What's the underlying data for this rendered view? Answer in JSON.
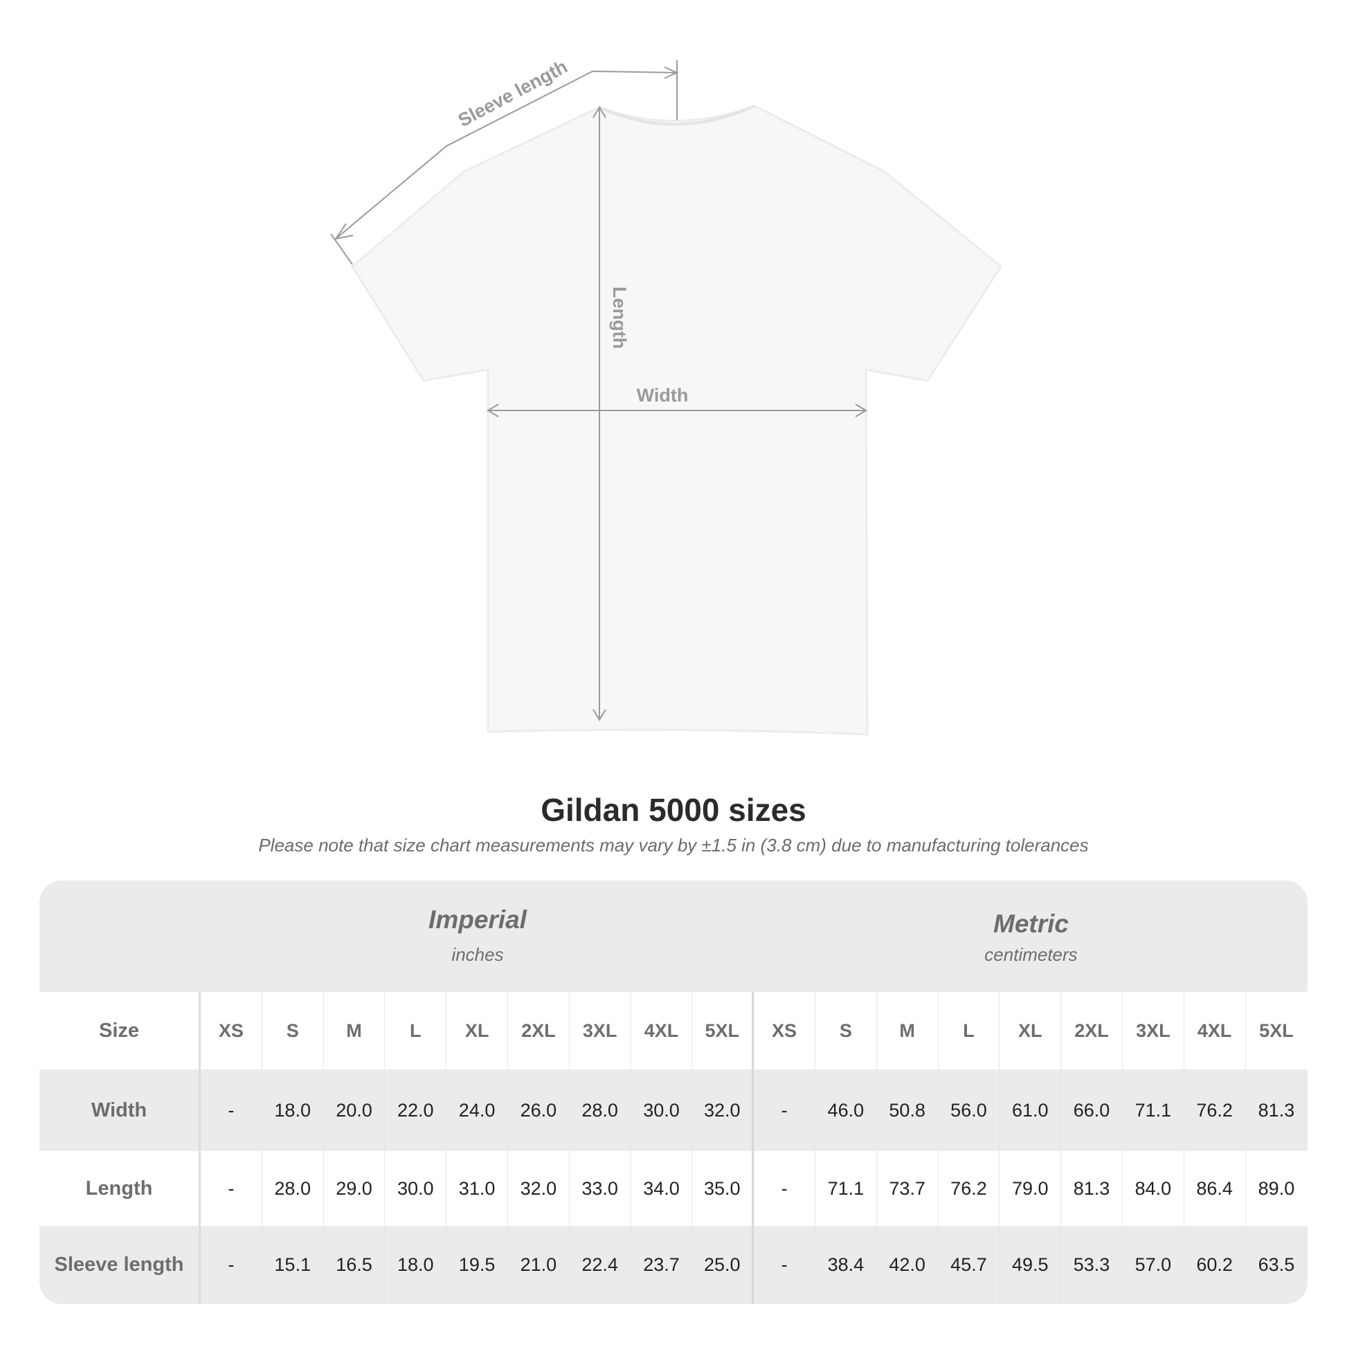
{
  "diagram": {
    "sleeve_label": "Sleeve length",
    "length_label": "Length",
    "width_label": "Width"
  },
  "title": "Gildan 5000 sizes",
  "note": "Please note that size chart measurements may vary by ±1.5 in (3.8 cm) due to manufacturing tolerances",
  "table": {
    "imperial": {
      "name": "Imperial",
      "unit": "inches"
    },
    "metric": {
      "name": "Metric",
      "unit": "centimeters"
    },
    "size_label": "Size",
    "sizes": [
      "XS",
      "S",
      "M",
      "L",
      "XL",
      "2XL",
      "3XL",
      "4XL",
      "5XL"
    ],
    "rows": [
      {
        "label": "Width",
        "imperial": [
          "-",
          "18.0",
          "20.0",
          "22.0",
          "24.0",
          "26.0",
          "28.0",
          "30.0",
          "32.0"
        ],
        "metric": [
          "-",
          "46.0",
          "50.8",
          "56.0",
          "61.0",
          "66.0",
          "71.1",
          "76.2",
          "81.3"
        ]
      },
      {
        "label": "Length",
        "imperial": [
          "-",
          "28.0",
          "29.0",
          "30.0",
          "31.0",
          "32.0",
          "33.0",
          "34.0",
          "35.0"
        ],
        "metric": [
          "-",
          "71.1",
          "73.7",
          "76.2",
          "79.0",
          "81.3",
          "84.0",
          "86.4",
          "89.0"
        ]
      },
      {
        "label": "Sleeve length",
        "imperial": [
          "-",
          "15.1",
          "16.5",
          "18.0",
          "19.5",
          "21.0",
          "22.4",
          "23.7",
          "25.0"
        ],
        "metric": [
          "-",
          "38.4",
          "42.0",
          "45.7",
          "49.5",
          "53.3",
          "57.0",
          "60.2",
          "63.5"
        ]
      }
    ]
  },
  "colors": {
    "header_bg": "#ebebeb",
    "label_text": "#6d6d6d",
    "value_text": "#222222",
    "dimension_line": "#9a9a9a"
  }
}
